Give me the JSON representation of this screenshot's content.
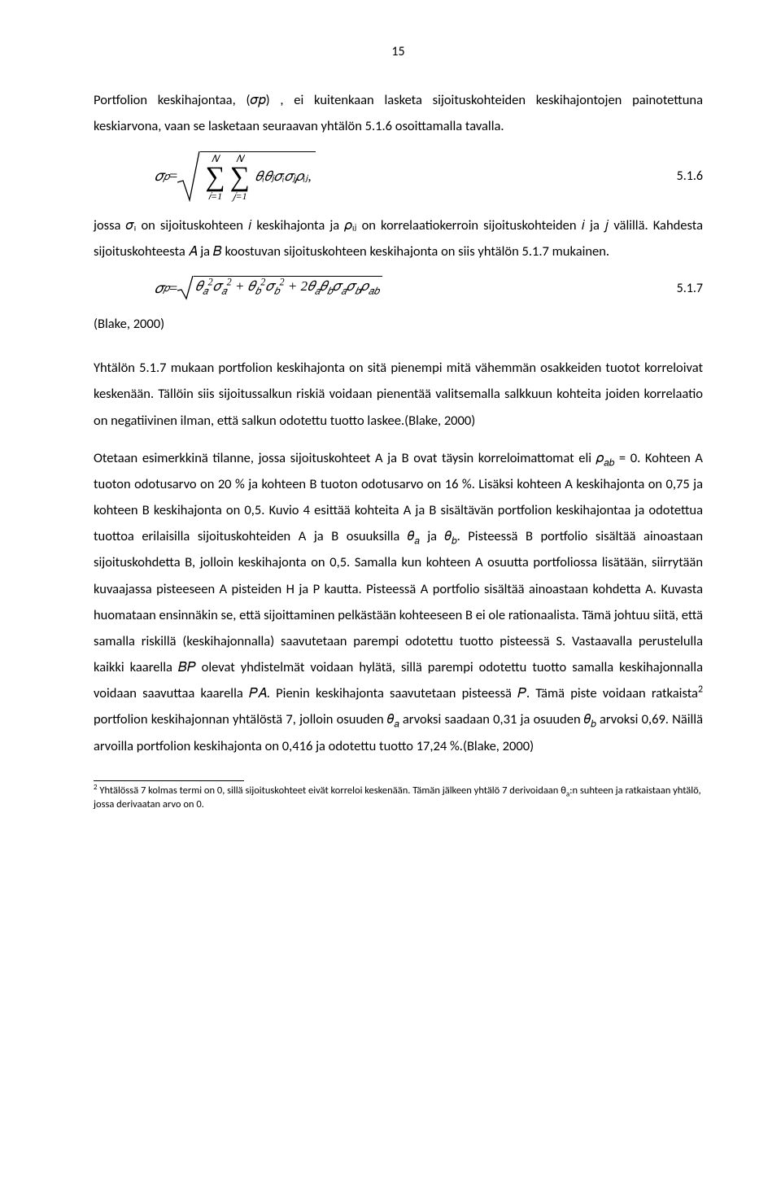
{
  "page_number": "15",
  "para1": "Portfolion keskihajontaa, (𝜎𝑝) , ei kuitenkaan lasketa sijoituskohteiden keskihajontojen painotettuna keskiarvona, vaan se lasketaan seuraavan yhtälön 5.1.6 osoittamalla tavalla.",
  "eq516": {
    "lhs": "𝜎",
    "lhs_sub": "𝑝",
    "equals": " = ",
    "sum1_top": "𝑁",
    "sum1_bot": "𝑖=1",
    "sum2_top": "𝑁",
    "sum2_bot": "𝑗=1",
    "term": "𝜃ᵢ𝜃ⱼ𝜎ᵢ𝜎ⱼ𝜌ᵢⱼ,",
    "number": "5.1.6"
  },
  "para2": "jossa 𝜎ᵢ on sijoituskohteen 𝑖 keskihajonta ja 𝜌ᵢⱼ on korrelaatiokerroin sijoituskohteiden 𝑖 ja 𝑗 välillä. Kahdesta sijoituskohteesta 𝐴 ja 𝐵 koostuvan sijoituskohteen keskihajonta on siis yhtälön 5.1.7 mukainen.",
  "eq517": {
    "lhs": "𝜎",
    "lhs_sub": "𝑝",
    "equals": " = ",
    "inside": "𝜃<span class='mn'><sub>𝑎</sub><sup>2</sup></span>𝜎<span class='mn'><sub>𝑎</sub><sup>2</sup></span> + 𝜃<span class='mn'><sub>𝑏</sub><sup>2</sup></span>𝜎<span class='mn'><sub>𝑏</sub><sup>2</sup></span> + 2𝜃<sub>𝑎</sub>𝜃<sub>𝑏</sub>𝜎<sub>𝑎</sub>𝜎<sub>𝑏</sub>𝜌<sub>𝑎𝑏</sub>",
    "number": "5.1.7"
  },
  "blake": "(Blake, 2000)",
  "para3": "Yhtälön 5.1.7 mukaan portfolion keskihajonta on sitä pienempi mitä vähemmän osakkeiden tuotot korreloivat keskenään. Tällöin siis sijoitussalkun riskiä voidaan pienentää valitsemalla salkkuun kohteita joiden korrelaatio on negatiivinen ilman, että salkun odotettu tuotto laskee.(Blake, 2000)",
  "para4": "Otetaan esimerkkinä tilanne, jossa sijoituskohteet A ja B ovat täysin korreloimattomat eli 𝜌<sub>𝑎𝑏</sub> = 0. Kohteen A tuoton odotusarvo on 20 % ja kohteen B tuoton odotusarvo on 16 %. Lisäksi kohteen A keskihajonta on 0,75 ja kohteen B keskihajonta on 0,5. Kuvio 4 esittää kohteita A ja B sisältävän portfolion keskihajontaa ja odotettua tuottoa erilaisilla sijoituskohteiden A ja B osuuksilla 𝜃<sub>𝑎</sub> ja 𝜃<sub>𝑏</sub>. Pisteessä B portfolio sisältää ainoastaan sijoituskohdetta B, jolloin keskihajonta on 0,5. Samalla kun kohteen A osuutta portfoliossa lisätään, siirrytään kuvaajassa pisteeseen A pisteiden H ja P kautta. Pisteessä A portfolio sisältää ainoastaan kohdetta A. Kuvasta huomataan ensinnäkin se, että sijoittaminen pelkästään kohteeseen B ei ole rationaalista. Tämä johtuu siitä, että samalla riskillä (keskihajonnalla) saavutetaan parempi odotettu tuotto pisteessä S. Vastaavalla perustelulla kaikki kaarella 𝐵𝑃 olevat yhdistelmät voidaan hylätä, sillä parempi odotettu tuotto samalla keskihajonnalla voidaan saavuttaa kaarella 𝑃𝐴. Pienin keskihajonta saavutetaan pisteessä 𝑃. Tämä piste voidaan ratkaista<sup>2</sup> portfolion keskihajonnan yhtälöstä 7, jolloin osuuden 𝜃<sub>𝑎</sub> arvoksi saadaan 0,31 ja osuuden 𝜃<sub>𝑏</sub> arvoksi 0,69. Näillä arvoilla portfolion keskihajonta on 0,416 ja odotettu tuotto 17,24 %.(Blake, 2000)",
  "footnote": "<sup>2</sup> Yhtälössä 7 kolmas termi on 0, sillä sijoituskohteet eivät korreloi keskenään. Tämän jälkeen yhtälö 7 derivoidaan θ<sub>a</sub>:n suhteen ja ratkaistaan yhtälö, jossa derivaatan arvo on 0.",
  "colors": {
    "text": "#000000",
    "bg": "#ffffff",
    "rule": "#000000"
  }
}
